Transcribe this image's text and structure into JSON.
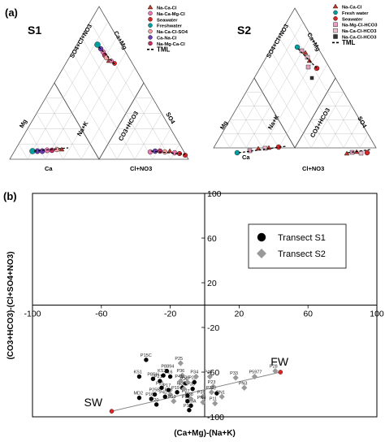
{
  "panel_a": {
    "label": "(a)",
    "diagrams": [
      {
        "name": "S1",
        "axes": {
          "top_left": "SO4+Cl+NO3",
          "top_right": "Ca+Mg",
          "mid_left": "Na+K",
          "mid_right": "CO3+HCO3",
          "left_bottom_left": "Mg",
          "right_bottom_right": "SO4",
          "bottom_left": "Ca",
          "bottom_right": "Cl+NO3"
        },
        "legend": [
          {
            "label": "Na-Ca-Cl",
            "marker": "triangle",
            "color": "#c0392b"
          },
          {
            "label": "Na-Ca-Mg-Cl",
            "marker": "circle",
            "color": "#e87bb3"
          },
          {
            "label": "Seawater",
            "marker": "circle",
            "color": "#d62728"
          },
          {
            "label": "Freshwater",
            "marker": "circle",
            "color": "#00a0a0"
          },
          {
            "label": "Na-Ca-Cl-SO4",
            "marker": "circle",
            "color": "#f2a0a0"
          },
          {
            "label": "Ca-Na-Cl",
            "marker": "circle",
            "color": "#6a3db0"
          },
          {
            "label": "Na-Mg-Ca-Cl",
            "marker": "circle",
            "color": "#c03060"
          },
          {
            "label": "TML",
            "marker": "dash",
            "color": "#000000"
          }
        ]
      },
      {
        "name": "S2",
        "axes": {
          "top_left": "SO4+Cl+NO3",
          "top_right": "Ca+Mg",
          "mid_left": "Na+K",
          "mid_right": "CO3+HCO3",
          "left_bottom_left": "Mg",
          "right_bottom_right": "SO4",
          "bottom_left": "Ca",
          "bottom_right": "Cl+NO3"
        },
        "legend": [
          {
            "label": "Na-Ca-Cl",
            "marker": "triangle",
            "color": "#c0392b"
          },
          {
            "label": "Fresh water",
            "marker": "circle",
            "color": "#00a0a0"
          },
          {
            "label": "Seawater",
            "marker": "circle",
            "color": "#d62728"
          },
          {
            "label": "Na-Mg-Cl-HCO3",
            "marker": "square",
            "color": "#e8a0c0"
          },
          {
            "label": "Na-Ca-Cl-HCO3",
            "marker": "square",
            "color": "#e8c0d0"
          },
          {
            "label": "Na-Ca-Cl-HCO3",
            "marker": "square",
            "color": "#333333"
          },
          {
            "label": "TML",
            "marker": "dash",
            "color": "#000000"
          }
        ]
      }
    ]
  },
  "chart_data": {
    "type": "scatter",
    "panel_label": "(b)",
    "xlabel": "(Ca+Mg)-(Na+K)",
    "ylabel": "(CO3+HCO3)-(Cl+SO4+NO3)",
    "xlim": [
      -100,
      100
    ],
    "ylim": [
      -100,
      100
    ],
    "x_ticks": [
      "-100",
      "-60",
      "-20",
      "20",
      "60",
      "100"
    ],
    "y_ticks": [
      "100",
      "60",
      "20",
      "-20",
      "-60",
      "-100"
    ],
    "series": [
      {
        "name": "Transect S1",
        "marker": "circle",
        "color": "#000000",
        "points": [
          {
            "x": -34,
            "y": -49,
            "label": "P15C"
          },
          {
            "x": -22,
            "y": -59,
            "label": "P8894"
          },
          {
            "x": -24,
            "y": -63,
            "label": "KS2"
          },
          {
            "x": -38,
            "y": -64,
            "label": "KS1"
          },
          {
            "x": -30,
            "y": -66,
            "label": "P8BH"
          },
          {
            "x": -20,
            "y": -64,
            "label": "P16"
          },
          {
            "x": -26,
            "y": -68,
            "label": "P21"
          },
          {
            "x": -25,
            "y": -74,
            "label": "P31"
          },
          {
            "x": -21,
            "y": -76,
            "label": "P17"
          },
          {
            "x": -29,
            "y": -80,
            "label": "P25B"
          },
          {
            "x": -38,
            "y": -83,
            "label": "MD2"
          },
          {
            "x": -31,
            "y": -84,
            "label": "P16B"
          },
          {
            "x": -23,
            "y": -82,
            "label": "P42"
          },
          {
            "x": -16,
            "y": -78,
            "label": "P19"
          },
          {
            "x": -28,
            "y": -89,
            "label": "P20"
          },
          {
            "x": -11,
            "y": -70,
            "label": "P26"
          },
          {
            "x": -13,
            "y": -74,
            "label": "P24"
          },
          {
            "x": -10,
            "y": -81,
            "label": "P27"
          },
          {
            "x": -10,
            "y": -86,
            "label": "P30"
          },
          {
            "x": -7,
            "y": -75,
            "label": "P35"
          },
          {
            "x": -8,
            "y": -90,
            "label": "P29A"
          },
          {
            "x": -6,
            "y": -69,
            "label": "P22"
          },
          {
            "x": 7,
            "y": -79,
            "label": "P7"
          },
          {
            "x": -9,
            "y": -94,
            "label": "P14"
          }
        ]
      },
      {
        "name": "Transect S2",
        "marker": "diamond",
        "color": "#999999",
        "points": [
          {
            "x": -14,
            "y": -52,
            "label": "P25"
          },
          {
            "x": -13,
            "y": -63,
            "label": "P36"
          },
          {
            "x": -5,
            "y": -64,
            "label": "P34"
          },
          {
            "x": 3,
            "y": -64,
            "label": "P40"
          },
          {
            "x": -10,
            "y": -69,
            "label": "P29"
          },
          {
            "x": 18,
            "y": -65,
            "label": "P33"
          },
          {
            "x": 29,
            "y": -64,
            "label": "P5977"
          },
          {
            "x": 41,
            "y": -59,
            "label": "P28"
          },
          {
            "x": 23,
            "y": -74,
            "label": "PN3"
          },
          {
            "x": 5,
            "y": -73,
            "label": "P23"
          },
          {
            "x": -12,
            "y": -75,
            "label": "P37"
          },
          {
            "x": 4,
            "y": -78,
            "label": "P32"
          },
          {
            "x": -1,
            "y": -82,
            "label": "P39"
          },
          {
            "x": 10,
            "y": -82,
            "label": "PN1"
          },
          {
            "x": -8,
            "y": -84,
            "label": "P38"
          },
          {
            "x": -1,
            "y": -87,
            "label": "PN4"
          },
          {
            "x": -20,
            "y": -80,
            "label": "P18"
          },
          {
            "x": -14,
            "y": -68,
            "label": "P41"
          },
          {
            "x": -18,
            "y": -86,
            "label": "P13"
          },
          {
            "x": 6,
            "y": -88,
            "label": "P11"
          }
        ]
      }
    ],
    "reference_line": {
      "from": {
        "x": -54,
        "y": -95,
        "label": "SW",
        "color": "#d62728"
      },
      "to": {
        "x": 44,
        "y": -60,
        "label": "FW",
        "color": "#d62728"
      }
    }
  }
}
